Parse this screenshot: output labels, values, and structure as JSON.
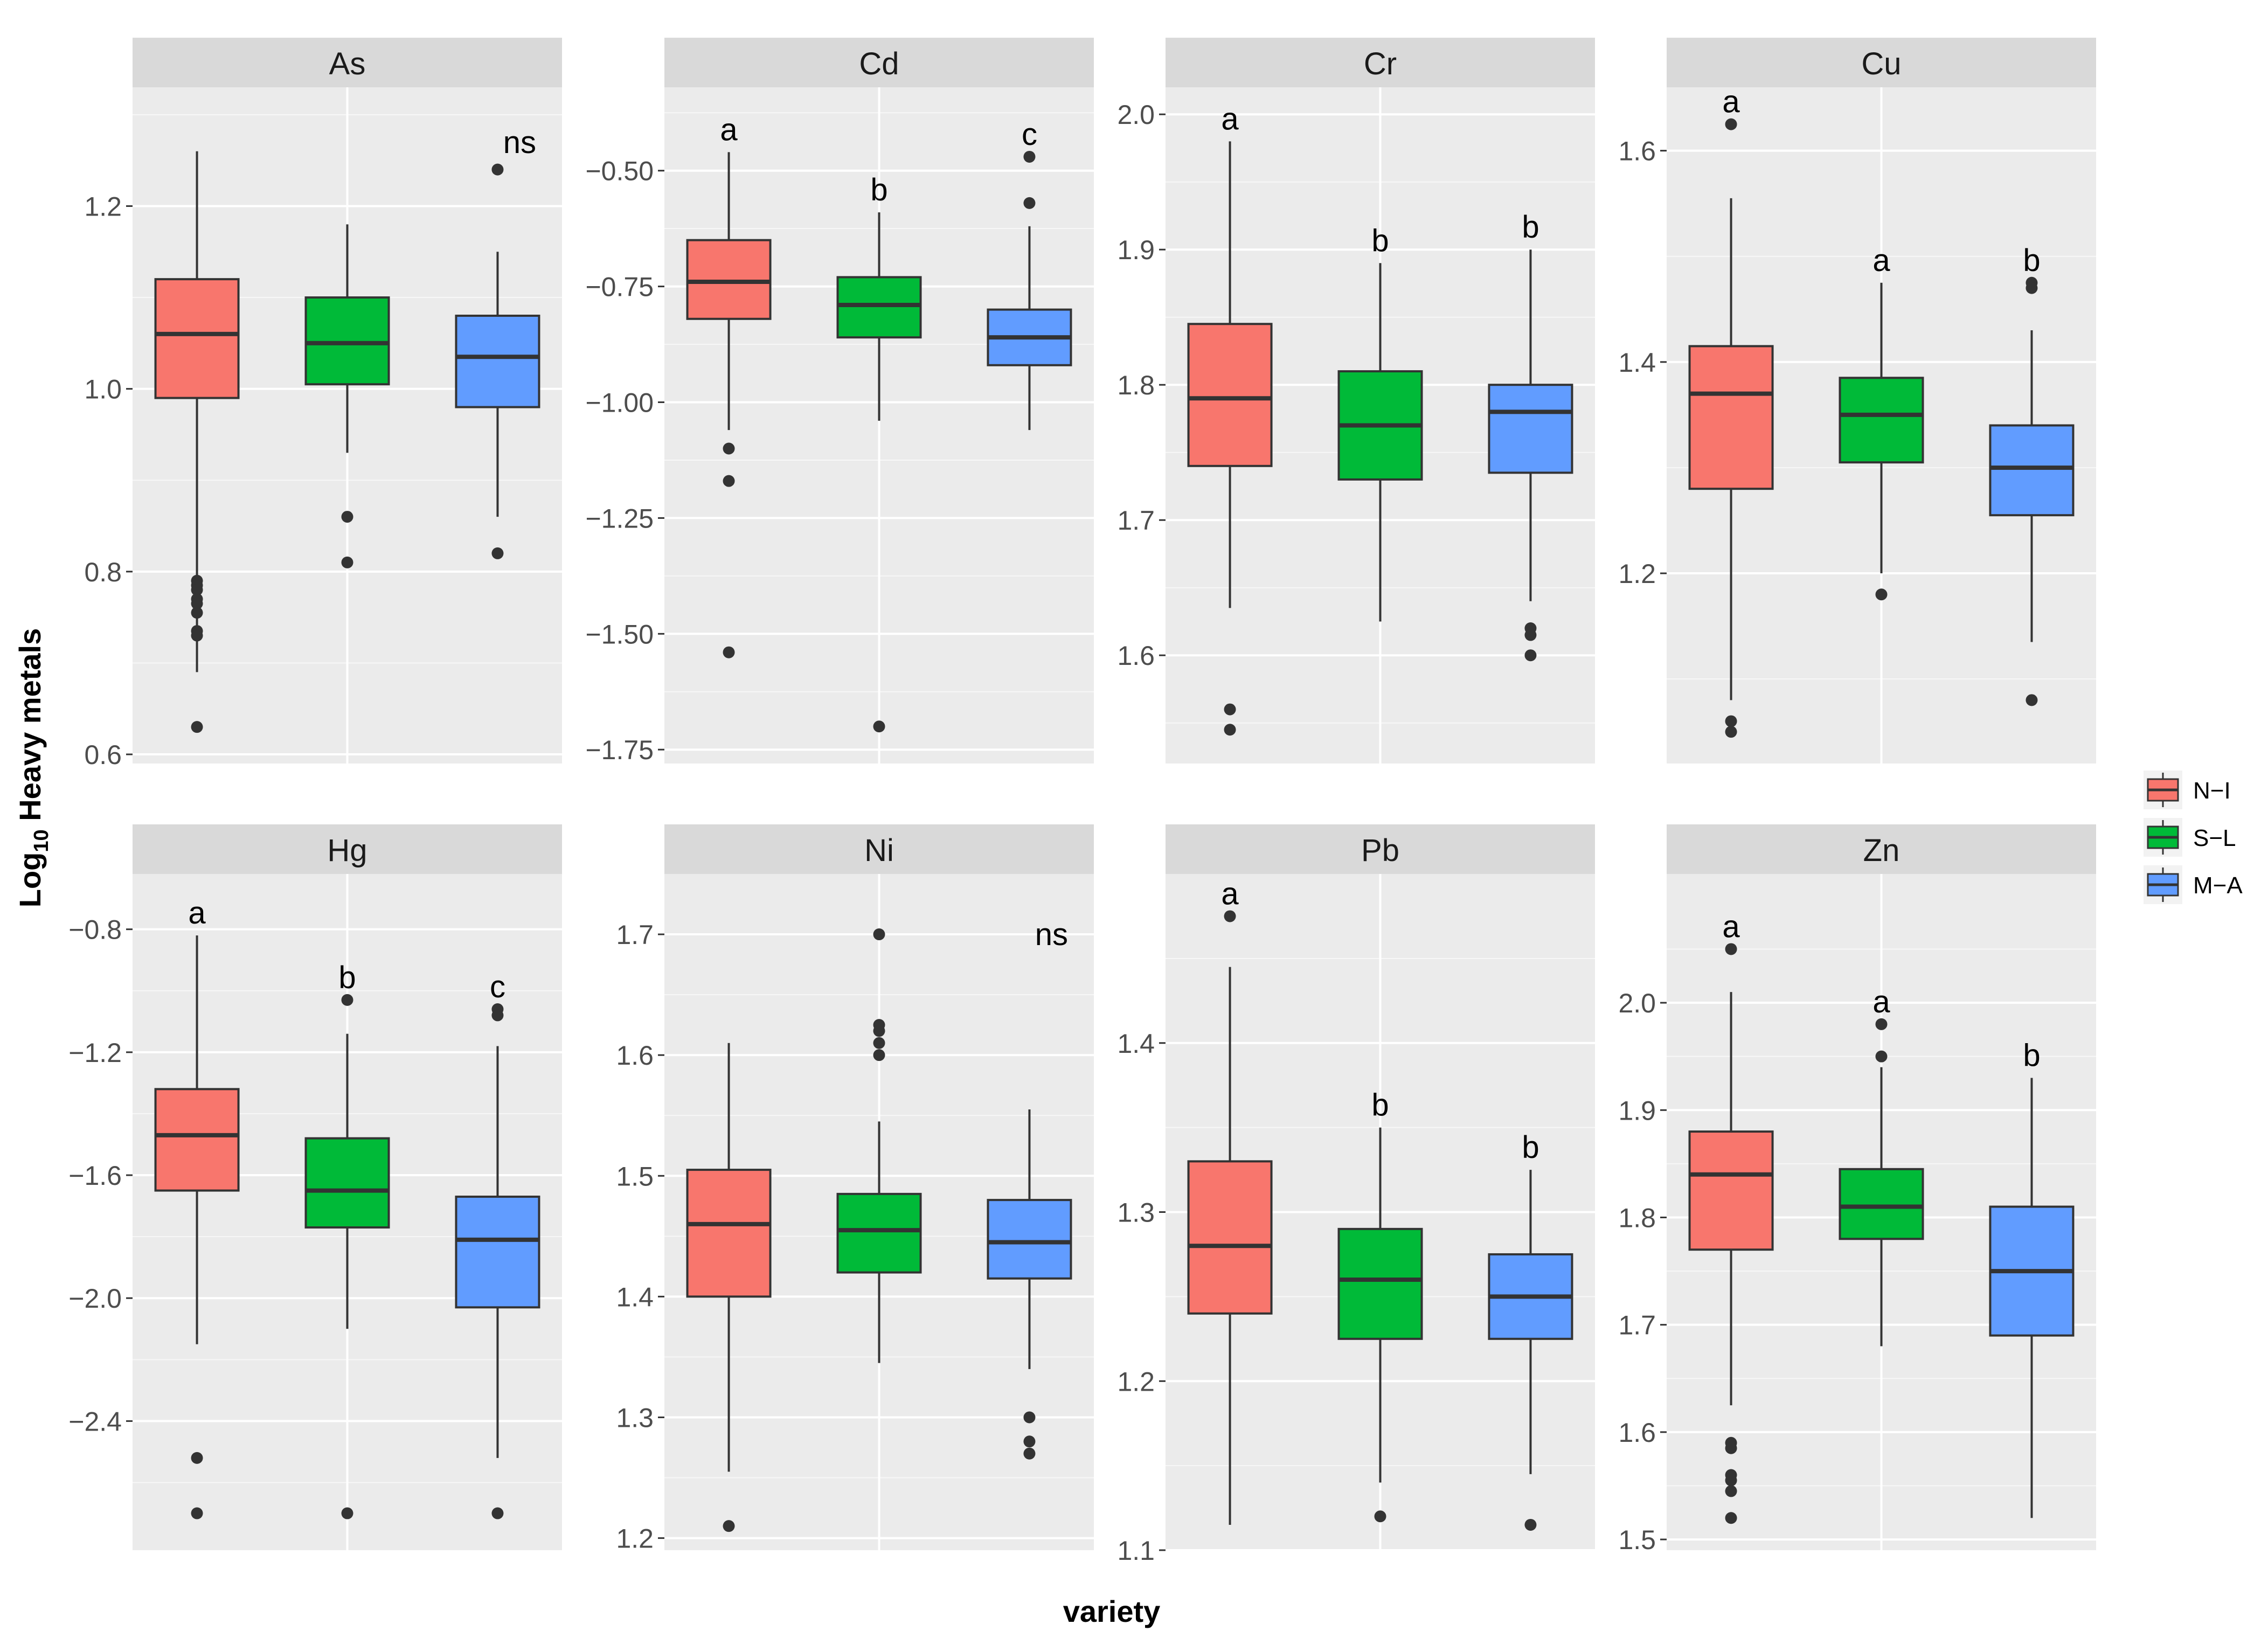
{
  "chart_data": {
    "type": "boxplot",
    "title": "",
    "xlabel": "variety",
    "ylabel_main": "Log",
    "ylabel_sub": "10",
    "ylabel_rest": " Heavy metals",
    "legend": {
      "placement": "right",
      "entries": [
        {
          "name": "N−I",
          "color": "#F8766D"
        },
        {
          "name": "S−L",
          "color": "#00BA38"
        },
        {
          "name": "M−A",
          "color": "#619CFF"
        }
      ]
    },
    "facets": [
      {
        "name": "As",
        "ylim": [
          0.59,
          1.33
        ],
        "ticks": [
          {
            "v": 0.6,
            "label": "0.6"
          },
          {
            "v": 0.8,
            "label": "0.8"
          },
          {
            "v": 1.0,
            "label": "1.0"
          },
          {
            "v": 1.2,
            "label": "1.2"
          }
        ],
        "note": "ns",
        "note_y": 1.27,
        "boxes": [
          {
            "group": "N−I",
            "lower": 0.69,
            "q1": 0.99,
            "median": 1.06,
            "q3": 1.12,
            "upper": 1.26,
            "outliers": [
              0.79,
              0.785,
              0.78,
              0.77,
              0.765,
              0.755,
              0.735,
              0.73,
              0.63
            ],
            "letter": ""
          },
          {
            "group": "S−L",
            "lower": 0.93,
            "q1": 1.005,
            "median": 1.05,
            "q3": 1.1,
            "upper": 1.18,
            "outliers": [
              0.86,
              0.81
            ],
            "letter": ""
          },
          {
            "group": "M−A",
            "lower": 0.86,
            "q1": 0.98,
            "median": 1.035,
            "q3": 1.08,
            "upper": 1.15,
            "outliers": [
              1.24,
              0.82
            ],
            "letter": ""
          }
        ]
      },
      {
        "name": "Cd",
        "ylim": [
          -1.78,
          -0.32
        ],
        "ticks": [
          {
            "v": -1.75,
            "label": "−1.75"
          },
          {
            "v": -1.5,
            "label": "−1.50"
          },
          {
            "v": -1.25,
            "label": "−1.25"
          },
          {
            "v": -1.0,
            "label": "−1.00"
          },
          {
            "v": -0.75,
            "label": "−0.75"
          },
          {
            "v": -0.5,
            "label": "−0.50"
          }
        ],
        "note": "",
        "note_y": null,
        "boxes": [
          {
            "group": "N−I",
            "lower": -1.06,
            "q1": -0.82,
            "median": -0.74,
            "q3": -0.65,
            "upper": -0.46,
            "outliers": [
              -1.1,
              -1.17,
              -1.54
            ],
            "letter": "a"
          },
          {
            "group": "S−L",
            "lower": -1.04,
            "q1": -0.86,
            "median": -0.79,
            "q3": -0.73,
            "upper": -0.59,
            "outliers": [
              -1.7
            ],
            "letter": "b"
          },
          {
            "group": "M−A",
            "lower": -1.06,
            "q1": -0.92,
            "median": -0.86,
            "q3": -0.8,
            "upper": -0.62,
            "outliers": [
              -0.47,
              -0.57
            ],
            "letter": "c"
          }
        ]
      },
      {
        "name": "Cr",
        "ylim": [
          1.52,
          2.02
        ],
        "ticks": [
          {
            "v": 1.6,
            "label": "1.6"
          },
          {
            "v": 1.7,
            "label": "1.7"
          },
          {
            "v": 1.8,
            "label": "1.8"
          },
          {
            "v": 1.9,
            "label": "1.9"
          },
          {
            "v": 2.0,
            "label": "2.0"
          }
        ],
        "note": "",
        "note_y": null,
        "boxes": [
          {
            "group": "N−I",
            "lower": 1.635,
            "q1": 1.74,
            "median": 1.79,
            "q3": 1.845,
            "upper": 1.98,
            "outliers": [
              1.56,
              1.545
            ],
            "letter": "a"
          },
          {
            "group": "S−L",
            "lower": 1.625,
            "q1": 1.73,
            "median": 1.77,
            "q3": 1.81,
            "upper": 1.89,
            "outliers": [],
            "letter": "b"
          },
          {
            "group": "M−A",
            "lower": 1.64,
            "q1": 1.735,
            "median": 1.78,
            "q3": 1.8,
            "upper": 1.9,
            "outliers": [
              1.62,
              1.615,
              1.6
            ],
            "letter": "b"
          }
        ]
      },
      {
        "name": "Cu",
        "ylim": [
          1.02,
          1.66
        ],
        "ticks": [
          {
            "v": 1.2,
            "label": "1.2"
          },
          {
            "v": 1.4,
            "label": "1.4"
          },
          {
            "v": 1.6,
            "label": "1.6"
          }
        ],
        "note": "",
        "note_y": null,
        "boxes": [
          {
            "group": "N−I",
            "lower": 1.08,
            "q1": 1.28,
            "median": 1.37,
            "q3": 1.415,
            "upper": 1.555,
            "outliers": [
              1.625,
              1.06,
              1.05
            ],
            "letter": "a"
          },
          {
            "group": "S−L",
            "lower": 1.2,
            "q1": 1.305,
            "median": 1.35,
            "q3": 1.385,
            "upper": 1.475,
            "outliers": [
              1.18
            ],
            "letter": "a"
          },
          {
            "group": "M−A",
            "lower": 1.135,
            "q1": 1.255,
            "median": 1.3,
            "q3": 1.34,
            "upper": 1.43,
            "outliers": [
              1.475,
              1.47,
              1.08
            ],
            "letter": "b"
          }
        ]
      },
      {
        "name": "Hg",
        "ylim": [
          -2.82,
          -0.62
        ],
        "ticks": [
          {
            "v": -2.4,
            "label": "−2.4"
          },
          {
            "v": -2.0,
            "label": "−2.0"
          },
          {
            "v": -1.6,
            "label": "−1.6"
          },
          {
            "v": -1.2,
            "label": "−1.2"
          },
          {
            "v": -0.8,
            "label": "−0.8"
          }
        ],
        "note": "",
        "note_y": null,
        "boxes": [
          {
            "group": "N−I",
            "lower": -2.15,
            "q1": -1.65,
            "median": -1.47,
            "q3": -1.32,
            "upper": -0.82,
            "outliers": [
              -2.52,
              -2.7
            ],
            "letter": "a"
          },
          {
            "group": "S−L",
            "lower": -2.1,
            "q1": -1.77,
            "median": -1.65,
            "q3": -1.48,
            "upper": -1.14,
            "outliers": [
              -1.03,
              -2.7
            ],
            "letter": "b"
          },
          {
            "group": "M−A",
            "lower": -2.52,
            "q1": -2.03,
            "median": -1.81,
            "q3": -1.67,
            "upper": -1.18,
            "outliers": [
              -1.06,
              -1.08,
              -2.7
            ],
            "letter": "c"
          }
        ]
      },
      {
        "name": "Ni",
        "ylim": [
          1.19,
          1.75
        ],
        "ticks": [
          {
            "v": 1.2,
            "label": "1.2"
          },
          {
            "v": 1.3,
            "label": "1.3"
          },
          {
            "v": 1.4,
            "label": "1.4"
          },
          {
            "v": 1.5,
            "label": "1.5"
          },
          {
            "v": 1.6,
            "label": "1.6"
          },
          {
            "v": 1.7,
            "label": "1.7"
          }
        ],
        "note": "ns",
        "note_y": 1.7,
        "boxes": [
          {
            "group": "N−I",
            "lower": 1.255,
            "q1": 1.4,
            "median": 1.46,
            "q3": 1.505,
            "upper": 1.61,
            "outliers": [
              1.21
            ],
            "letter": ""
          },
          {
            "group": "S−L",
            "lower": 1.345,
            "q1": 1.42,
            "median": 1.455,
            "q3": 1.485,
            "upper": 1.545,
            "outliers": [
              1.7,
              1.625,
              1.62,
              1.61,
              1.6
            ],
            "letter": ""
          },
          {
            "group": "M−A",
            "lower": 1.34,
            "q1": 1.415,
            "median": 1.445,
            "q3": 1.48,
            "upper": 1.555,
            "outliers": [
              1.3,
              1.28,
              1.27
            ],
            "letter": ""
          }
        ]
      },
      {
        "name": "Pb",
        "ylim": [
          1.1,
          1.5
        ],
        "ticks": [
          {
            "v": 1.1,
            "label": "1.1"
          },
          {
            "v": 1.2,
            "label": "1.2"
          },
          {
            "v": 1.3,
            "label": "1.3"
          },
          {
            "v": 1.4,
            "label": "1.4"
          }
        ],
        "note": "",
        "note_y": null,
        "boxes": [
          {
            "group": "N−I",
            "lower": 1.115,
            "q1": 1.24,
            "median": 1.28,
            "q3": 1.33,
            "upper": 1.445,
            "outliers": [
              1.475
            ],
            "letter": "a"
          },
          {
            "group": "S−L",
            "lower": 1.14,
            "q1": 1.225,
            "median": 1.26,
            "q3": 1.29,
            "upper": 1.35,
            "outliers": [
              1.12
            ],
            "letter": "b"
          },
          {
            "group": "M−A",
            "lower": 1.145,
            "q1": 1.225,
            "median": 1.25,
            "q3": 1.275,
            "upper": 1.325,
            "outliers": [
              1.115
            ],
            "letter": "b"
          }
        ]
      },
      {
        "name": "Zn",
        "ylim": [
          1.49,
          2.12
        ],
        "ticks": [
          {
            "v": 1.5,
            "label": "1.5"
          },
          {
            "v": 1.6,
            "label": "1.6"
          },
          {
            "v": 1.7,
            "label": "1.7"
          },
          {
            "v": 1.8,
            "label": "1.8"
          },
          {
            "v": 1.9,
            "label": "1.9"
          },
          {
            "v": 2.0,
            "label": "2.0"
          }
        ],
        "note": "",
        "note_y": null,
        "boxes": [
          {
            "group": "N−I",
            "lower": 1.625,
            "q1": 1.77,
            "median": 1.84,
            "q3": 1.88,
            "upper": 2.01,
            "outliers": [
              2.05,
              1.59,
              1.585,
              1.56,
              1.555,
              1.545,
              1.52
            ],
            "letter": "a"
          },
          {
            "group": "S−L",
            "lower": 1.68,
            "q1": 1.78,
            "median": 1.81,
            "q3": 1.845,
            "upper": 1.94,
            "outliers": [
              1.98,
              1.95
            ],
            "letter": "a"
          },
          {
            "group": "M−A",
            "lower": 1.52,
            "q1": 1.69,
            "median": 1.75,
            "q3": 1.81,
            "upper": 1.93,
            "outliers": [],
            "letter": "b"
          }
        ]
      }
    ]
  }
}
